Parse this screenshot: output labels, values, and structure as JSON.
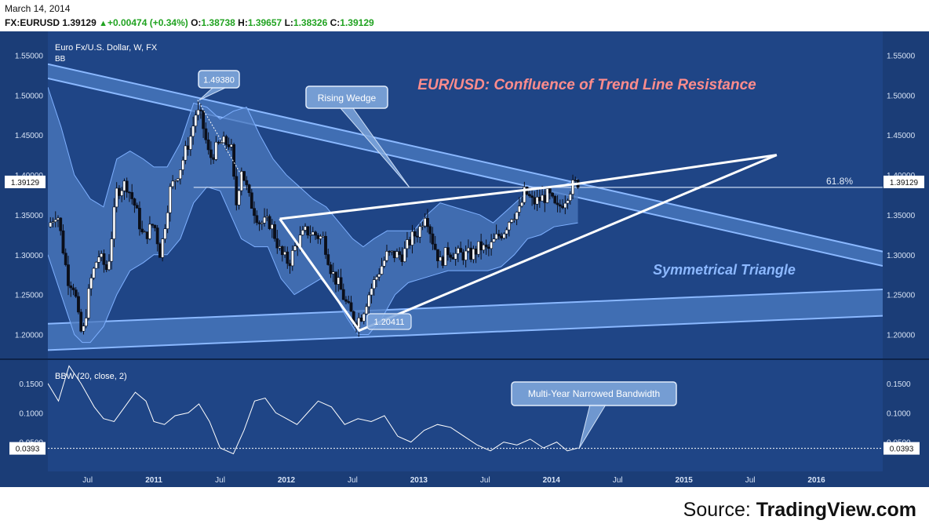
{
  "header": {
    "date": "March 14, 2014",
    "symbol": "FX:EURUSD",
    "last": "1.39129",
    "change": "+0.00474 (+0.34%)",
    "o_label": "O:",
    "o": "1.38738",
    "h_label": "H:",
    "h": "1.39657",
    "l_label": "L:",
    "l": "1.38326",
    "c_label": "C:",
    "c": "1.39129",
    "up_icon": "triangle-up-icon"
  },
  "source": {
    "prefix": "Source:",
    "name": "TradingView.com"
  },
  "colors": {
    "background": "#1f4586",
    "band_fill": "#4c79be",
    "band_line": "#7eb0ff",
    "trend_fill": "#5b8fd8",
    "trend_line": "#8ab8ff",
    "wedge": "#ffffff",
    "title_color": "#ff8c8c",
    "triangle_label_color": "#8cb8ff",
    "axis_text": "#d8e4f6"
  },
  "chart_data": [
    {
      "type": "candlestick",
      "series": [
        {
          "name": "Euro Fx/U.S. Dollar, W, FX"
        },
        {
          "name": "BB"
        }
      ],
      "title": "EUR/USD: Confluence of Trend Line Resistance",
      "ylim": [
        1.17,
        1.58
      ],
      "y_ticks": [
        "1.55000",
        "1.50000",
        "1.45000",
        "1.40000",
        "1.35000",
        "1.30000",
        "1.25000",
        "1.20000"
      ],
      "y_tick_values": [
        1.55,
        1.5,
        1.45,
        1.4,
        1.35,
        1.3,
        1.25,
        1.2
      ],
      "x_ticks": [
        "Jul",
        "2011",
        "Jul",
        "2012",
        "Jul",
        "2013",
        "Jul",
        "2014",
        "Jul",
        "2015",
        "Jul",
        "2016"
      ],
      "x_tick_values": [
        2010.5,
        2011.0,
        2011.5,
        2012.0,
        2012.5,
        2013.0,
        2013.5,
        2014.0,
        2014.5,
        2015.0,
        2015.5,
        2016.0
      ],
      "xlim": [
        2010.2,
        2016.5
      ],
      "last_price_label": "1.39129",
      "last_price": 1.39129,
      "fib_label": "61.8%",
      "fib_level": 1.3845,
      "price_path": [
        [
          2010.2,
          1.335
        ],
        [
          2010.27,
          1.355
        ],
        [
          2010.35,
          1.27
        ],
        [
          2010.4,
          1.26
        ],
        [
          2010.43,
          1.22
        ],
        [
          2010.46,
          1.195
        ],
        [
          2010.52,
          1.265
        ],
        [
          2010.58,
          1.3
        ],
        [
          2010.65,
          1.28
        ],
        [
          2010.72,
          1.38
        ],
        [
          2010.79,
          1.39
        ],
        [
          2010.86,
          1.36
        ],
        [
          2010.92,
          1.32
        ],
        [
          2011.0,
          1.34
        ],
        [
          2011.05,
          1.3
        ],
        [
          2011.12,
          1.38
        ],
        [
          2011.2,
          1.41
        ],
        [
          2011.28,
          1.45
        ],
        [
          2011.32,
          1.48
        ],
        [
          2011.36,
          1.47
        ],
        [
          2011.42,
          1.42
        ],
        [
          2011.5,
          1.44
        ],
        [
          2011.58,
          1.44
        ],
        [
          2011.62,
          1.36
        ],
        [
          2011.66,
          1.41
        ],
        [
          2011.72,
          1.37
        ],
        [
          2011.8,
          1.34
        ],
        [
          2011.88,
          1.34
        ],
        [
          2011.96,
          1.3
        ],
        [
          2012.02,
          1.29
        ],
        [
          2012.08,
          1.315
        ],
        [
          2012.15,
          1.33
        ],
        [
          2012.22,
          1.325
        ],
        [
          2012.28,
          1.32
        ],
        [
          2012.34,
          1.28
        ],
        [
          2012.4,
          1.26
        ],
        [
          2012.46,
          1.235
        ],
        [
          2012.52,
          1.215
        ],
        [
          2012.57,
          1.225
        ],
        [
          2012.62,
          1.25
        ],
        [
          2012.7,
          1.28
        ],
        [
          2012.76,
          1.3
        ],
        [
          2012.82,
          1.3
        ],
        [
          2012.88,
          1.3
        ],
        [
          2012.94,
          1.32
        ],
        [
          2013.0,
          1.33
        ],
        [
          2013.05,
          1.355
        ],
        [
          2013.1,
          1.32
        ],
        [
          2013.16,
          1.29
        ],
        [
          2013.22,
          1.305
        ],
        [
          2013.28,
          1.3
        ],
        [
          2013.35,
          1.3
        ],
        [
          2013.4,
          1.3
        ],
        [
          2013.46,
          1.31
        ],
        [
          2013.52,
          1.305
        ],
        [
          2013.58,
          1.32
        ],
        [
          2013.64,
          1.33
        ],
        [
          2013.7,
          1.35
        ],
        [
          2013.76,
          1.355
        ],
        [
          2013.8,
          1.38
        ],
        [
          2013.86,
          1.365
        ],
        [
          2013.92,
          1.37
        ],
        [
          2013.98,
          1.375
        ],
        [
          2014.04,
          1.355
        ],
        [
          2014.1,
          1.37
        ],
        [
          2014.15,
          1.385
        ],
        [
          2014.2,
          1.3913
        ]
      ],
      "bb_upper_path": [
        [
          2010.2,
          1.51
        ],
        [
          2010.3,
          1.46
        ],
        [
          2010.4,
          1.4
        ],
        [
          2010.52,
          1.37
        ],
        [
          2010.62,
          1.36
        ],
        [
          2010.72,
          1.42
        ],
        [
          2010.82,
          1.43
        ],
        [
          2010.92,
          1.42
        ],
        [
          2011.0,
          1.41
        ],
        [
          2011.1,
          1.41
        ],
        [
          2011.2,
          1.44
        ],
        [
          2011.3,
          1.49
        ],
        [
          2011.4,
          1.485
        ],
        [
          2011.5,
          1.47
        ],
        [
          2011.6,
          1.48
        ],
        [
          2011.7,
          1.485
        ],
        [
          2011.8,
          1.45
        ],
        [
          2011.9,
          1.42
        ],
        [
          2012.0,
          1.4
        ],
        [
          2012.1,
          1.385
        ],
        [
          2012.2,
          1.37
        ],
        [
          2012.3,
          1.36
        ],
        [
          2012.4,
          1.34
        ],
        [
          2012.5,
          1.32
        ],
        [
          2012.58,
          1.31
        ],
        [
          2012.66,
          1.32
        ],
        [
          2012.76,
          1.33
        ],
        [
          2012.86,
          1.33
        ],
        [
          2012.96,
          1.33
        ],
        [
          2013.06,
          1.35
        ],
        [
          2013.16,
          1.365
        ],
        [
          2013.26,
          1.36
        ],
        [
          2013.36,
          1.355
        ],
        [
          2013.46,
          1.35
        ],
        [
          2013.56,
          1.34
        ],
        [
          2013.66,
          1.355
        ],
        [
          2013.76,
          1.37
        ],
        [
          2013.86,
          1.385
        ],
        [
          2013.96,
          1.385
        ],
        [
          2014.06,
          1.385
        ],
        [
          2014.2,
          1.395
        ]
      ],
      "bb_lower_path": [
        [
          2010.2,
          1.3
        ],
        [
          2010.3,
          1.25
        ],
        [
          2010.4,
          1.2
        ],
        [
          2010.46,
          1.19
        ],
        [
          2010.52,
          1.19
        ],
        [
          2010.62,
          1.21
        ],
        [
          2010.72,
          1.25
        ],
        [
          2010.82,
          1.28
        ],
        [
          2010.92,
          1.29
        ],
        [
          2011.0,
          1.3
        ],
        [
          2011.1,
          1.3
        ],
        [
          2011.2,
          1.32
        ],
        [
          2011.3,
          1.365
        ],
        [
          2011.4,
          1.385
        ],
        [
          2011.5,
          1.38
        ],
        [
          2011.58,
          1.35
        ],
        [
          2011.66,
          1.32
        ],
        [
          2011.76,
          1.31
        ],
        [
          2011.86,
          1.31
        ],
        [
          2011.96,
          1.27
        ],
        [
          2012.06,
          1.25
        ],
        [
          2012.16,
          1.26
        ],
        [
          2012.26,
          1.27
        ],
        [
          2012.36,
          1.25
        ],
        [
          2012.46,
          1.22
        ],
        [
          2012.54,
          1.2
        ],
        [
          2012.62,
          1.2
        ],
        [
          2012.72,
          1.22
        ],
        [
          2012.82,
          1.25
        ],
        [
          2012.92,
          1.265
        ],
        [
          2013.02,
          1.27
        ],
        [
          2013.12,
          1.275
        ],
        [
          2013.22,
          1.28
        ],
        [
          2013.32,
          1.28
        ],
        [
          2013.42,
          1.28
        ],
        [
          2013.52,
          1.28
        ],
        [
          2013.62,
          1.285
        ],
        [
          2013.72,
          1.3
        ],
        [
          2013.82,
          1.32
        ],
        [
          2013.92,
          1.325
        ],
        [
          2014.02,
          1.335
        ],
        [
          2014.2,
          1.34
        ]
      ],
      "annotations": [
        {
          "label": "1.49380",
          "x": 2011.33,
          "y": 1.4938
        },
        {
          "label": "1.20411",
          "x": 2012.55,
          "y": 1.2041
        },
        {
          "label": "Rising Wedge",
          "x": 2012.93,
          "y": 1.335
        },
        {
          "label": "Symmetrical Triangle",
          "x": 2015.4,
          "y": 1.28
        }
      ],
      "upper_trend_channel": {
        "start": [
          2010.2,
          1.53
        ],
        "end": [
          2016.5,
          1.295
        ],
        "width": 0.018
      },
      "lower_trend_channel": {
        "start": [
          2010.2,
          1.197
        ],
        "end": [
          2016.5,
          1.24
        ],
        "width": 0.033
      },
      "wedge_points": [
        [
          2011.95,
          1.345
        ],
        [
          2012.55,
          1.205
        ],
        [
          2015.7,
          1.425
        ],
        [
          2014.2,
          1.389
        ]
      ]
    },
    {
      "type": "line",
      "series": [
        {
          "name": "BBW (20, close, 2)"
        }
      ],
      "ylim": [
        0.0,
        0.19
      ],
      "y_ticks": [
        "0.1500",
        "0.1000",
        "0.0500"
      ],
      "y_tick_values": [
        0.15,
        0.1,
        0.05
      ],
      "last_value_label": "0.0393",
      "last_value": 0.0393,
      "annotation": {
        "label": "Multi-Year Narrowed Bandwidth",
        "x": 2014.15,
        "y": 0.0393
      },
      "x": [
        2010.2,
        2010.28,
        2010.36,
        2010.45,
        2010.55,
        2010.62,
        2010.7,
        2010.78,
        2010.86,
        2010.94,
        2011.0,
        2011.08,
        2011.16,
        2011.26,
        2011.34,
        2011.42,
        2011.5,
        2011.6,
        2011.68,
        2011.76,
        2011.84,
        2011.92,
        2012.0,
        2012.08,
        2012.16,
        2012.24,
        2012.34,
        2012.44,
        2012.54,
        2012.64,
        2012.74,
        2012.84,
        2012.94,
        2013.04,
        2013.14,
        2013.24,
        2013.34,
        2013.44,
        2013.54,
        2013.64,
        2013.74,
        2013.84,
        2013.94,
        2014.04,
        2014.12,
        2014.2
      ],
      "values": [
        0.15,
        0.12,
        0.18,
        0.15,
        0.11,
        0.09,
        0.085,
        0.11,
        0.135,
        0.12,
        0.085,
        0.08,
        0.095,
        0.1,
        0.115,
        0.085,
        0.04,
        0.03,
        0.07,
        0.12,
        0.125,
        0.1,
        0.09,
        0.08,
        0.1,
        0.12,
        0.11,
        0.08,
        0.09,
        0.085,
        0.095,
        0.06,
        0.05,
        0.07,
        0.08,
        0.075,
        0.06,
        0.045,
        0.035,
        0.05,
        0.045,
        0.055,
        0.04,
        0.05,
        0.035,
        0.04
      ]
    }
  ]
}
